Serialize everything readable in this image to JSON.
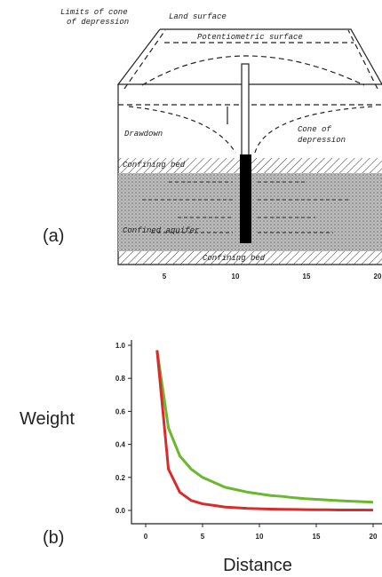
{
  "diagram": {
    "panel": "(a)",
    "labels": {
      "limits": [
        "Limits of cone",
        "of depression"
      ],
      "land_surface": "Land surface",
      "potentiometric_surface": "Potentiometric surface",
      "drawdown": "Drawdown",
      "cone": [
        "Cone of",
        "depression"
      ],
      "confining_bed_top": "Confining bed",
      "confined_aquifer": "Confined aquifer",
      "confining_bed_bottom": "Confining bed"
    },
    "xticks": [
      5,
      10,
      15,
      20
    ]
  },
  "chart_data": {
    "type": "line",
    "panel": "(b)",
    "x_label": "Distance",
    "y_label": "Weight",
    "x": [
      1,
      2,
      3,
      4,
      5,
      6,
      7,
      8,
      9,
      10,
      11,
      12,
      13,
      14,
      15,
      16,
      17,
      18,
      19,
      20
    ],
    "series": [
      {
        "color": "#6ab82e",
        "values": [
          0.97,
          0.5,
          0.33,
          0.25,
          0.2,
          0.17,
          0.14,
          0.125,
          0.11,
          0.1,
          0.09,
          0.085,
          0.077,
          0.071,
          0.067,
          0.063,
          0.059,
          0.056,
          0.053,
          0.05
        ]
      },
      {
        "color": "#d92b2b",
        "values": [
          0.97,
          0.25,
          0.11,
          0.06,
          0.04,
          0.03,
          0.02,
          0.016,
          0.012,
          0.01,
          0.008,
          0.007,
          0.006,
          0.005,
          0.004,
          0.004,
          0.003,
          0.003,
          0.003,
          0.002
        ]
      }
    ],
    "xlim": [
      0,
      20
    ],
    "ylim": [
      0,
      1
    ],
    "xticks": [
      0,
      5,
      10,
      15,
      20
    ],
    "yticks": [
      {
        "value": 0,
        "label": "0.0"
      },
      0.2,
      0.4,
      0.6,
      0.8,
      {
        "value": 1,
        "label": "1.0"
      }
    ]
  }
}
